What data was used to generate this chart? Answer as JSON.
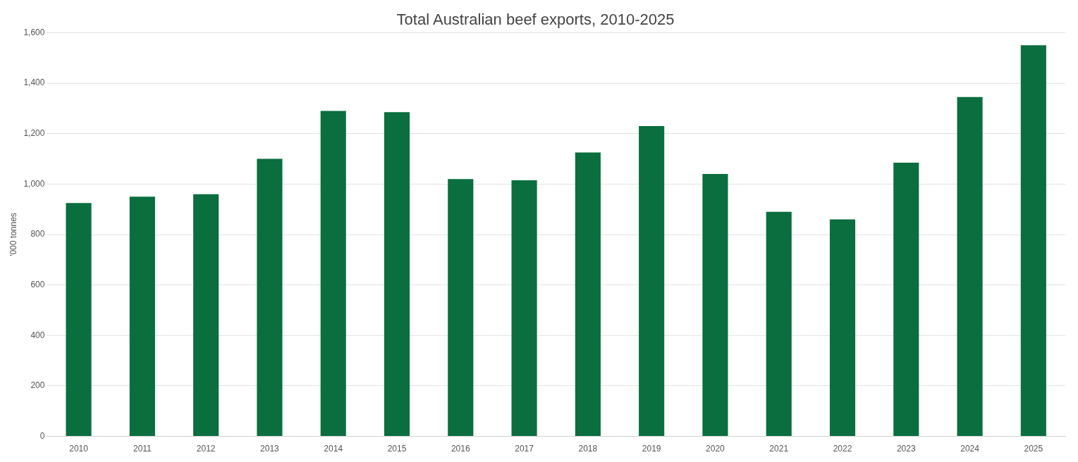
{
  "chart_data": {
    "type": "bar",
    "title": "Total Australian beef exports, 2010-2025",
    "ylabel": "'000 tonnes",
    "categories": [
      "2010",
      "2011",
      "2012",
      "2013",
      "2014",
      "2015",
      "2016",
      "2017",
      "2018",
      "2019",
      "2020",
      "2021",
      "2022",
      "2023",
      "2024",
      "2025"
    ],
    "values": [
      925,
      950,
      960,
      1100,
      1290,
      1285,
      1020,
      1015,
      1125,
      1230,
      1040,
      890,
      860,
      1085,
      1345,
      1550
    ],
    "color": "#0a6e3f",
    "ylim": [
      0,
      1600
    ],
    "yticks": [
      0,
      200,
      400,
      600,
      {
        "value": 800,
        "label": "800"
      },
      {
        "value": 1000,
        "label": "1,000"
      },
      {
        "value": 1200,
        "label": "1,200"
      },
      {
        "value": 1400,
        "label": "1,400"
      },
      {
        "value": 1600,
        "label": "1,600"
      }
    ],
    "grid": "y",
    "legend": false
  }
}
